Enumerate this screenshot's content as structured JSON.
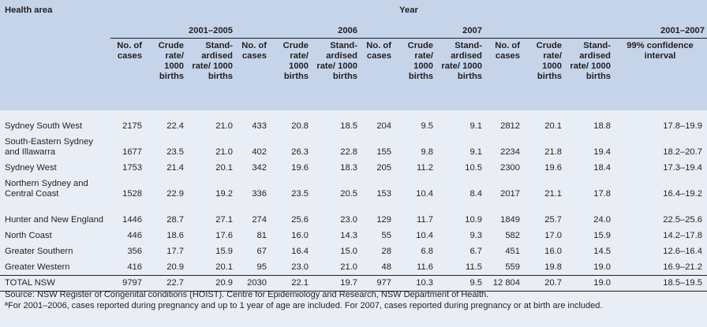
{
  "header": {
    "health_area": "Health area",
    "year": "Year",
    "groups": [
      "2001–2005",
      "2006",
      "2007",
      "2001–2007"
    ],
    "columns": {
      "cases": "No. of cases",
      "crude": "Crude rate/ 1000 births",
      "std": "Stand-ardised rate/ 1000 births",
      "ci": "99% confidence interval"
    }
  },
  "rows": [
    {
      "area": "Sydney South West",
      "v": [
        "2175",
        "22.4",
        "21.0",
        "433",
        "20.8",
        "18.5",
        "204",
        "9.5",
        "9.1",
        "2812",
        "20.1",
        "18.8",
        "17.8–19.9"
      ]
    },
    {
      "area": "South-Eastern Sydney and Illawarra",
      "v": [
        "1677",
        "23.5",
        "21.0",
        "402",
        "26.3",
        "22.8",
        "155",
        "9.8",
        "9.1",
        "2234",
        "21.8",
        "19.4",
        "18.2–20.7"
      ]
    },
    {
      "area": "Sydney West",
      "v": [
        "1753",
        "21.4",
        "20.1",
        "342",
        "19.6",
        "18.3",
        "205",
        "11.2",
        "10.5",
        "2300",
        "19.6",
        "18.4",
        "17.3–19.4"
      ]
    },
    {
      "area": "Northern Sydney and Central Coast",
      "v": [
        "1528",
        "22.9",
        "19.2",
        "336",
        "23.5",
        "20.5",
        "153",
        "10.4",
        "8.4",
        "2017",
        "21.1",
        "17.8",
        "16.4–19.2"
      ]
    },
    {
      "area": "Hunter and New England",
      "v": [
        "1446",
        "28.7",
        "27.1",
        "274",
        "25.6",
        "23.0",
        "129",
        "11.7",
        "10.9",
        "1849",
        "25.7",
        "24.0",
        "22.5–25.6"
      ]
    },
    {
      "area": "North Coast",
      "v": [
        "446",
        "18.6",
        "17.6",
        "81",
        "16.0",
        "14.3",
        "55",
        "10.4",
        "9.3",
        "582",
        "17.0",
        "15.9",
        "14.2–17.8"
      ]
    },
    {
      "area": "Greater Southern",
      "v": [
        "356",
        "17.7",
        "15.9",
        "67",
        "16.4",
        "15.0",
        "28",
        "6.8",
        "6.7",
        "451",
        "16.0",
        "14.5",
        "12.6–16.4"
      ]
    },
    {
      "area": "Greater Western",
      "v": [
        "416",
        "20.9",
        "20.1",
        "95",
        "23.0",
        "21.0",
        "48",
        "11.6",
        "11.5",
        "559",
        "19.8",
        "19.0",
        "16.9–21.2"
      ]
    },
    {
      "area": "TOTAL NSW",
      "v": [
        "9797",
        "22.7",
        "20.9",
        "2030",
        "22.1",
        "19.7",
        "977",
        "10.3",
        "9.5",
        "12 804",
        "20.7",
        "19.0",
        "18.5–19.5"
      ]
    }
  ],
  "notes": {
    "source": "Source: NSW Register of Congenital conditions (HOIST). Centre for Epidemiology and Research, NSW Department of Health.",
    "footnote": "ªFor 2001–2006, cases reported during pregnancy and up to 1 year of age are included. For 2007, cases reported during pregnancy or at birth are included."
  }
}
